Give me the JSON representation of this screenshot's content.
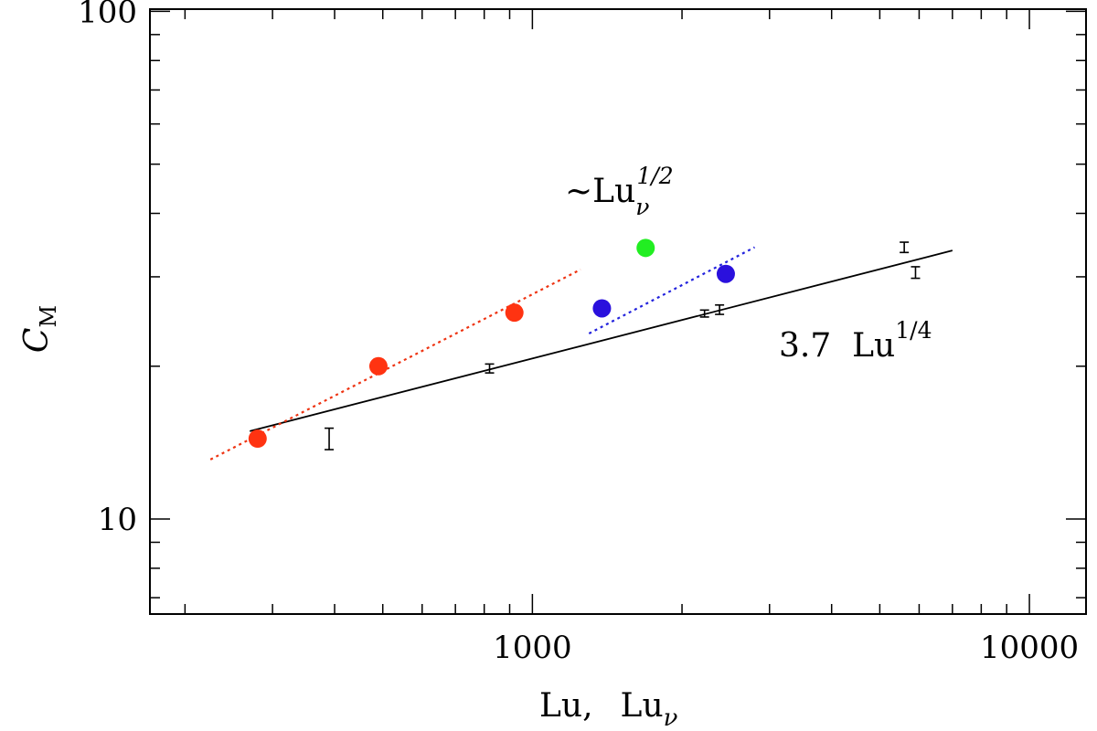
{
  "chart_data": {
    "type": "scatter",
    "xscale": "log",
    "yscale": "log",
    "xlim": [
      170,
      13000
    ],
    "ylim": [
      6.5,
      101
    ],
    "grid": false,
    "legend": "none",
    "x_ticks": [
      {
        "value": 1000,
        "label": "1000"
      },
      {
        "value": 10000,
        "label": "10000"
      }
    ],
    "y_ticks": [
      {
        "value": 10,
        "label": "10"
      },
      {
        "value": 100,
        "label": "100"
      }
    ],
    "xlabel": {
      "main": "Lu,",
      "main2": "Lu",
      "sub": "ν"
    },
    "ylabel": {
      "main": "C",
      "sub": "M"
    },
    "series": [
      {
        "kind": "markers",
        "color": "#ff3311",
        "points": [
          {
            "x": 280,
            "y": 14.4
          },
          {
            "x": 490,
            "y": 20.0
          },
          {
            "x": 920,
            "y": 25.5
          }
        ]
      },
      {
        "kind": "markers",
        "color": "#ff3311",
        "points": []
      },
      {
        "kind": "markers",
        "color": "#2a10dd",
        "points": [
          {
            "x": 1380,
            "y": 26.0
          },
          {
            "x": 2450,
            "y": 30.4
          }
        ]
      },
      {
        "kind": "markers",
        "color": "#22ee22",
        "points": [
          {
            "x": 1690,
            "y": 34.2
          }
        ]
      },
      {
        "kind": "errorbars",
        "color": "#000000",
        "points": [
          {
            "x": 390,
            "y": 14.4,
            "ylo": 13.7,
            "yhi": 15.1
          },
          {
            "x": 820,
            "y": 19.8,
            "ylo": 19.4,
            "yhi": 20.2
          },
          {
            "x": 2220,
            "y": 25.4,
            "ylo": 25.0,
            "yhi": 25.8
          },
          {
            "x": 2380,
            "y": 25.8,
            "ylo": 25.3,
            "yhi": 26.4
          },
          {
            "x": 5600,
            "y": 34.3,
            "ylo": 33.5,
            "yhi": 35.1
          },
          {
            "x": 5900,
            "y": 30.6,
            "ylo": 29.8,
            "yhi": 31.4
          }
        ]
      }
    ],
    "fits": [
      {
        "name": "3.7 Lu^1/4",
        "color": "#000000",
        "style": "solid",
        "x": [
          270,
          7000
        ],
        "y": [
          14.9,
          33.8
        ]
      },
      {
        "name": "red ~Lu^1/2",
        "color": "#ee3311",
        "style": "dotted",
        "x": [
          225,
          1250
        ],
        "y": [
          13.1,
          31.0
        ]
      },
      {
        "name": "blue ~Lu^1/2",
        "color": "#2222dd",
        "style": "dotted",
        "x": [
          1300,
          2800
        ],
        "y": [
          23.2,
          34.3
        ]
      }
    ],
    "annotations": [
      {
        "id": "sqrt",
        "prefix": "~Lu",
        "sub": "ν",
        "sup": "1/2"
      },
      {
        "id": "quarter",
        "prefix": "3.7  Lu",
        "sup": "1/4"
      }
    ]
  }
}
